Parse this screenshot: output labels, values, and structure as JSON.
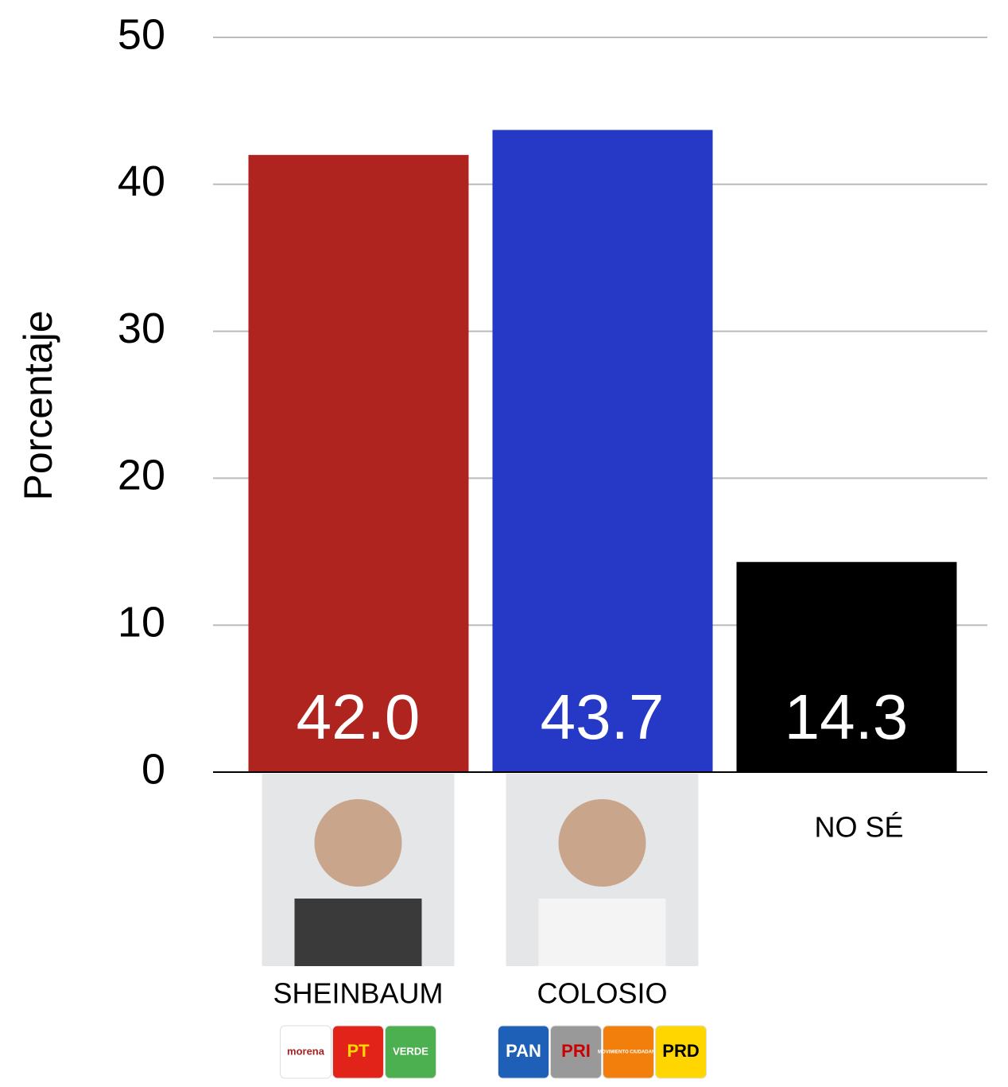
{
  "chart_data": {
    "type": "bar",
    "y_label": "Porcentaje",
    "categories": [
      "SHEINBAUM",
      "COLOSIO",
      "NO SÉ"
    ],
    "values": [
      42.0,
      43.7,
      14.3
    ],
    "value_labels": [
      "42.0",
      "43.7",
      "14.3"
    ],
    "colors": [
      "#b0241f",
      "#2539c6",
      "#000000"
    ],
    "category_logos": [
      [
        "morena",
        "PT",
        "VERDE"
      ],
      [
        "PAN",
        "PRI",
        "MOVIMIENTO CIUDADANO",
        "PRD"
      ],
      []
    ],
    "ylim": [
      0,
      50
    ],
    "yticks": [
      0,
      10,
      20,
      30,
      40,
      50
    ],
    "grid": true
  }
}
